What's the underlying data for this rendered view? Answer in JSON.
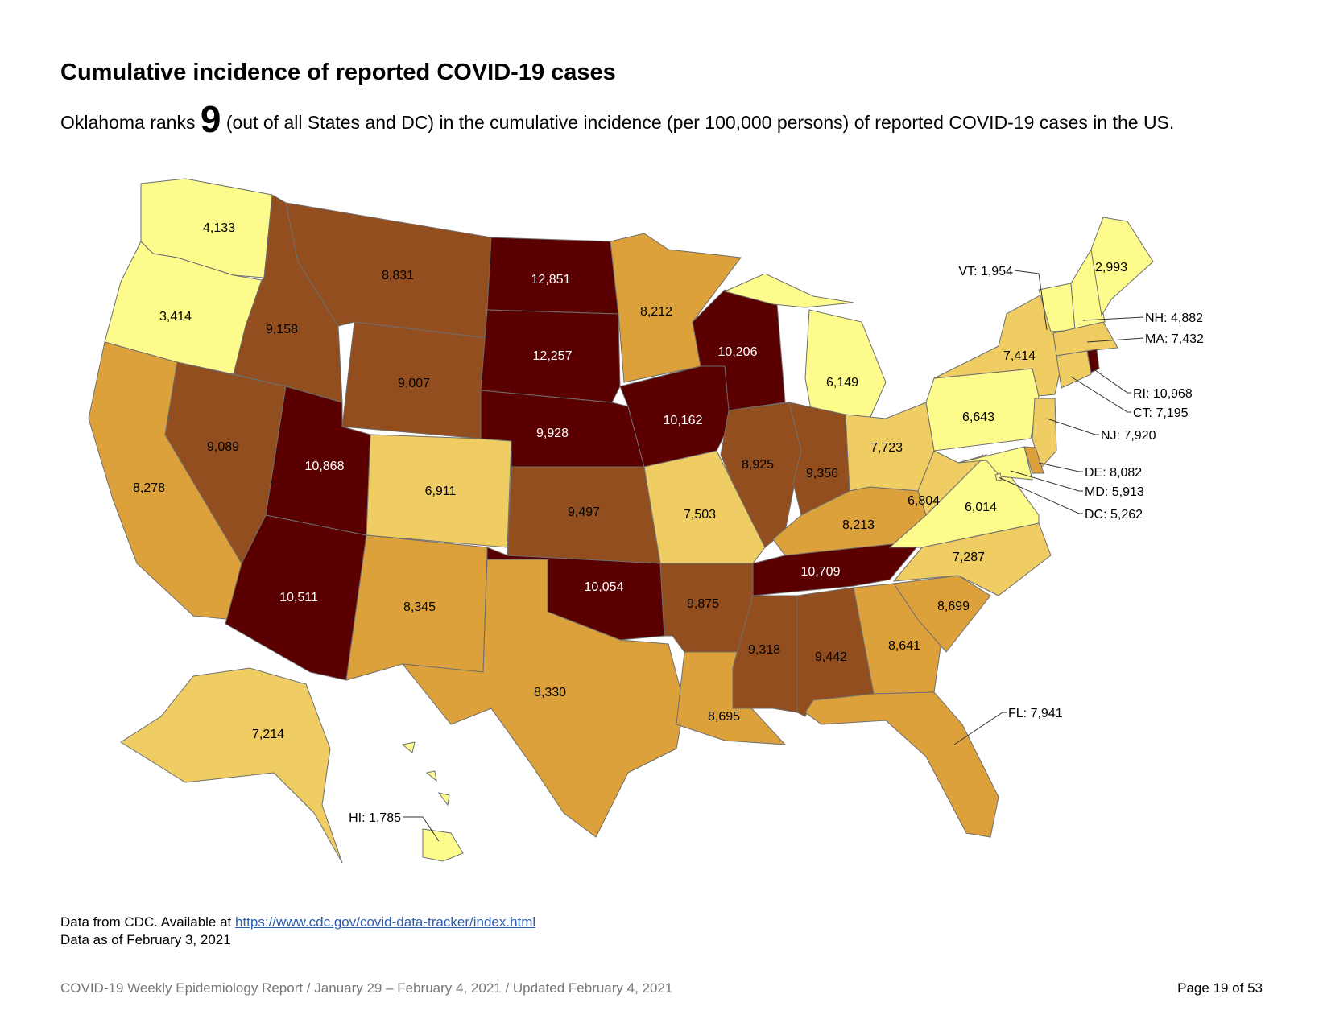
{
  "title": "Cumulative incidence of reported COVID-19 cases",
  "subtitle": {
    "before": "Oklahoma ranks ",
    "rank": "9",
    "after": " (out of all States and DC) in the cumulative incidence (per 100,000 persons) of reported COVID-19 cases in the US."
  },
  "source": {
    "prefix": "Data from CDC. Available at ",
    "link": "https://www.cdc.gov/covid-data-tracker/index.html",
    "as_of": "Data as of February 3, 2021"
  },
  "footer": {
    "report": "COVID-19 Weekly Epidemiology Report / January 29 – February 4, 2021 / Updated February 4, 2021",
    "page": "Page 19 of 53"
  },
  "palette": [
    "#fdfb8c",
    "#efcd63",
    "#dda13c",
    "#924e1e",
    "#5a0000"
  ],
  "border_color": "#6e6e6e",
  "states": [
    {
      "abbr": "WA",
      "value": "4,133",
      "bucket": 0
    },
    {
      "abbr": "OR",
      "value": "3,414",
      "bucket": 0
    },
    {
      "abbr": "CA",
      "value": "8,278",
      "bucket": 2
    },
    {
      "abbr": "NV",
      "value": "9,089",
      "bucket": 3
    },
    {
      "abbr": "ID",
      "value": "9,158",
      "bucket": 3
    },
    {
      "abbr": "MT",
      "value": "8,831",
      "bucket": 3
    },
    {
      "abbr": "WY",
      "value": "9,007",
      "bucket": 3
    },
    {
      "abbr": "UT",
      "value": "10,868",
      "bucket": 4
    },
    {
      "abbr": "AZ",
      "value": "10,511",
      "bucket": 4
    },
    {
      "abbr": "CO",
      "value": "6,911",
      "bucket": 1
    },
    {
      "abbr": "NM",
      "value": "8,345",
      "bucket": 2
    },
    {
      "abbr": "ND",
      "value": "12,851",
      "bucket": 4
    },
    {
      "abbr": "SD",
      "value": "12,257",
      "bucket": 4
    },
    {
      "abbr": "NE",
      "value": "9,928",
      "bucket": 4
    },
    {
      "abbr": "KS",
      "value": "9,497",
      "bucket": 3
    },
    {
      "abbr": "OK",
      "value": "10,054",
      "bucket": 4
    },
    {
      "abbr": "TX",
      "value": "8,330",
      "bucket": 2
    },
    {
      "abbr": "MN",
      "value": "8,212",
      "bucket": 2
    },
    {
      "abbr": "IA",
      "value": "10,162",
      "bucket": 4
    },
    {
      "abbr": "MO",
      "value": "7,503",
      "bucket": 1
    },
    {
      "abbr": "AR",
      "value": "9,875",
      "bucket": 3
    },
    {
      "abbr": "LA",
      "value": "8,695",
      "bucket": 2
    },
    {
      "abbr": "WI",
      "value": "10,206",
      "bucket": 4
    },
    {
      "abbr": "IL",
      "value": "8,925",
      "bucket": 3
    },
    {
      "abbr": "MI",
      "value": "6,149",
      "bucket": 0
    },
    {
      "abbr": "IN",
      "value": "9,356",
      "bucket": 3
    },
    {
      "abbr": "OH",
      "value": "7,723",
      "bucket": 1
    },
    {
      "abbr": "KY",
      "value": "8,213",
      "bucket": 2
    },
    {
      "abbr": "TN",
      "value": "10,709",
      "bucket": 4
    },
    {
      "abbr": "MS",
      "value": "9,318",
      "bucket": 3
    },
    {
      "abbr": "AL",
      "value": "9,442",
      "bucket": 3
    },
    {
      "abbr": "GA",
      "value": "8,641",
      "bucket": 2
    },
    {
      "abbr": "FL",
      "value": "7,941",
      "bucket": 2
    },
    {
      "abbr": "SC",
      "value": "8,699",
      "bucket": 2
    },
    {
      "abbr": "NC",
      "value": "7,287",
      "bucket": 1
    },
    {
      "abbr": "VA",
      "value": "6,014",
      "bucket": 0
    },
    {
      "abbr": "WV",
      "value": "6,804",
      "bucket": 1
    },
    {
      "abbr": "PA",
      "value": "6,643",
      "bucket": 0
    },
    {
      "abbr": "NY",
      "value": "7,414",
      "bucket": 1
    },
    {
      "abbr": "VT",
      "value": "1,954",
      "bucket": 0
    },
    {
      "abbr": "NH",
      "value": "4,882",
      "bucket": 0
    },
    {
      "abbr": "ME",
      "value": "2,993",
      "bucket": 0
    },
    {
      "abbr": "MA",
      "value": "7,432",
      "bucket": 1
    },
    {
      "abbr": "RI",
      "value": "10,968",
      "bucket": 4
    },
    {
      "abbr": "CT",
      "value": "7,195",
      "bucket": 1
    },
    {
      "abbr": "NJ",
      "value": "7,920",
      "bucket": 1
    },
    {
      "abbr": "DE",
      "value": "8,082",
      "bucket": 2
    },
    {
      "abbr": "MD",
      "value": "5,913",
      "bucket": 0
    },
    {
      "abbr": "DC",
      "value": "5,262",
      "bucket": 0
    },
    {
      "abbr": "AK",
      "value": "7,214",
      "bucket": 1
    },
    {
      "abbr": "HI",
      "value": "1,785",
      "bucket": 0
    }
  ]
}
